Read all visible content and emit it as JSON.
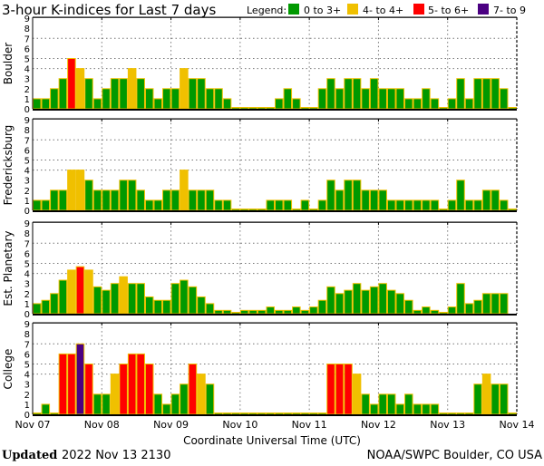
{
  "title": "3-hour K-indices for Last 7 days",
  "legend": {
    "label": "Legend:",
    "items": [
      {
        "label": "0 to 3+",
        "color": "#009900"
      },
      {
        "label": "4- to 4+",
        "color": "#f0c000"
      },
      {
        "label": "5- to 6+",
        "color": "#ff0000"
      },
      {
        "label": "7- to 9",
        "color": "#4b0082"
      }
    ]
  },
  "xlabel": "Coordinate Universal Time (UTC)",
  "x_ticks": [
    "Nov 07",
    "Nov 08",
    "Nov 09",
    "Nov 10",
    "Nov 11",
    "Nov 12",
    "Nov 13",
    "Nov 14"
  ],
  "footer": {
    "updated_label": "Updated",
    "updated_value": "2022 Nov 13 2130",
    "source": "NOAA/SWPC Boulder, CO USA"
  },
  "chart_data": [
    {
      "type": "bar",
      "ylabel": "Boulder",
      "ylim": [
        0,
        9
      ],
      "y_ticks": [
        "0",
        "1",
        "2",
        "3",
        "4",
        "5",
        "6",
        "7",
        "8",
        "9"
      ],
      "values": [
        1,
        1,
        2,
        3,
        5,
        4,
        3,
        1,
        2,
        3,
        3,
        4,
        3,
        2,
        1,
        2,
        2,
        4,
        3,
        3,
        2,
        2,
        1,
        0,
        0,
        0,
        0,
        0,
        1,
        2,
        1,
        0,
        0,
        2,
        3,
        2,
        3,
        3,
        2,
        3,
        2,
        2,
        2,
        1,
        1,
        2,
        1,
        0,
        1,
        3,
        1,
        3,
        3,
        3,
        2,
        0
      ]
    },
    {
      "type": "bar",
      "ylabel": "Fredericksburg",
      "ylim": [
        0,
        9
      ],
      "y_ticks": [
        "0",
        "1",
        "2",
        "3",
        "4",
        "5",
        "6",
        "7",
        "8",
        "9"
      ],
      "values": [
        1,
        1,
        2,
        2,
        4,
        4,
        3,
        2,
        2,
        2,
        3,
        3,
        2,
        1,
        1,
        2,
        2,
        4,
        2,
        2,
        2,
        1,
        1,
        0,
        0,
        0,
        0,
        1,
        1,
        1,
        0,
        1,
        0,
        1,
        3,
        2,
        3,
        3,
        2,
        2,
        2,
        1,
        1,
        1,
        1,
        1,
        1,
        0,
        1,
        3,
        1,
        1,
        2,
        2,
        1,
        0
      ]
    },
    {
      "type": "bar",
      "ylabel": "Est. Planetary",
      "ylim": [
        0,
        9
      ],
      "y_ticks": [
        "0",
        "1",
        "2",
        "3",
        "4",
        "5",
        "6",
        "7",
        "8",
        "9"
      ],
      "values": [
        1.0,
        1.33,
        2.0,
        3.33,
        4.33,
        4.67,
        4.33,
        2.67,
        2.33,
        3.0,
        3.67,
        3.0,
        3.0,
        1.67,
        1.33,
        1.33,
        3.0,
        3.33,
        2.67,
        1.67,
        1.0,
        0.33,
        0.33,
        0,
        0.33,
        0.33,
        0.33,
        0.67,
        0.33,
        0.33,
        0.67,
        0.33,
        0.67,
        1.33,
        2.67,
        2.0,
        2.33,
        3.0,
        2.33,
        2.67,
        3.0,
        2.33,
        2.0,
        1.33,
        0.33,
        0.67,
        0.33,
        0,
        0.67,
        3.0,
        1.0,
        1.33,
        2.0,
        2.0,
        2.0,
        null
      ]
    },
    {
      "type": "bar",
      "ylabel": "College",
      "ylim": [
        0,
        9
      ],
      "y_ticks": [
        "0",
        "1",
        "2",
        "3",
        "4",
        "5",
        "6",
        "7",
        "8",
        "9"
      ],
      "values": [
        0,
        1,
        0,
        6,
        6,
        7,
        5,
        2,
        2,
        4,
        5,
        6,
        6,
        5,
        2,
        1,
        2,
        3,
        5,
        4,
        3,
        0,
        0,
        0,
        0,
        0,
        0,
        0,
        0,
        0,
        0,
        0,
        0,
        0,
        5,
        5,
        5,
        4,
        2,
        1,
        2,
        2,
        1,
        2,
        1,
        1,
        1,
        0,
        0,
        0,
        0,
        3,
        4,
        3,
        3,
        0
      ]
    }
  ]
}
